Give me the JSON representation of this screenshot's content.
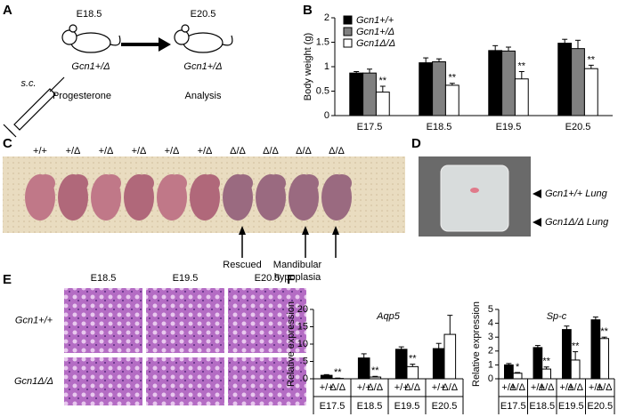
{
  "panels": {
    "labels": [
      "A",
      "B",
      "C",
      "D",
      "E",
      "F"
    ]
  },
  "schematic": {
    "stage_start": "E18.5",
    "stage_end": "E20.5",
    "genotype": "Gcn1+/Δ",
    "injection": "s.c.",
    "treatment": "Progesterone",
    "outcome": "Analysis"
  },
  "embryos": {
    "genotypes": [
      "+/+",
      "+/Δ",
      "+/Δ",
      "+/Δ",
      "+/Δ",
      "+/Δ",
      "Δ/Δ",
      "Δ/Δ",
      "Δ/Δ",
      "Δ/Δ"
    ],
    "annotations": [
      "Rescued",
      "Mandibular hypoplasia"
    ]
  },
  "lungs": {
    "labels": [
      "Gcn1+/+ Lung",
      "Gcn1Δ/Δ Lung"
    ]
  },
  "histology": {
    "columns": [
      "E18.5",
      "E19.5",
      "E20.5"
    ],
    "rows": [
      "Gcn1+/+",
      "Gcn1Δ/Δ"
    ]
  },
  "chart_data": [
    {
      "type": "bar",
      "ylabel": "Body weight (g)",
      "categories": [
        "E17.5",
        "E18.5",
        "E19.5",
        "E20.5"
      ],
      "series": [
        {
          "name": "Gcn1+/+",
          "color": "#000000",
          "values": [
            0.87,
            1.08,
            1.33,
            1.48
          ],
          "errors": [
            0.03,
            0.1,
            0.1,
            0.08
          ]
        },
        {
          "name": "Gcn1+/Δ",
          "color": "#808080",
          "values": [
            0.87,
            1.1,
            1.32,
            1.37
          ],
          "errors": [
            0.08,
            0.06,
            0.08,
            0.17
          ]
        },
        {
          "name": "Gcn1Δ/Δ",
          "color": "#ffffff",
          "values": [
            0.48,
            0.62,
            0.75,
            0.96
          ],
          "errors": [
            0.12,
            0.04,
            0.15,
            0.07
          ],
          "significance": [
            "**",
            "**",
            "**",
            "**"
          ]
        }
      ],
      "ylim": [
        0,
        2
      ],
      "yticks": [
        0,
        0.5,
        1,
        1.5,
        2
      ],
      "legend": "upper left"
    },
    {
      "type": "bar",
      "title": "Aqp5",
      "ylabel": "Relative expression",
      "categories": [
        "E17.5",
        "E18.5",
        "E19.5",
        "E20.5"
      ],
      "series": [
        {
          "name": "+/+",
          "color": "#000000",
          "values": [
            1.0,
            6.0,
            8.5,
            8.7
          ],
          "errors": [
            0.2,
            1.2,
            0.7,
            1.5
          ]
        },
        {
          "name": "Δ/Δ",
          "color": "#ffffff",
          "values": [
            0.1,
            0.5,
            3.5,
            12.8
          ],
          "errors": [
            0.1,
            0.2,
            0.7,
            5.5
          ],
          "significance": [
            "**",
            "**",
            "**",
            null
          ]
        }
      ],
      "ylim": [
        0,
        20
      ],
      "yticks": [
        0,
        5,
        10,
        15,
        20
      ]
    },
    {
      "type": "bar",
      "title": "Sp-c",
      "ylabel": "Relative expression",
      "categories": [
        "E17.5",
        "E18.5",
        "E19.5",
        "E20.5"
      ],
      "series": [
        {
          "name": "+/+",
          "color": "#000000",
          "values": [
            1.0,
            2.25,
            3.55,
            4.25
          ],
          "errors": [
            0.1,
            0.15,
            0.25,
            0.2
          ]
        },
        {
          "name": "Δ/Δ",
          "color": "#ffffff",
          "values": [
            0.4,
            0.7,
            1.35,
            2.9
          ],
          "errors": [
            0.05,
            0.15,
            0.6,
            0.1
          ],
          "significance": [
            "*",
            "**",
            "**",
            "**"
          ]
        }
      ],
      "ylim": [
        0,
        5
      ],
      "yticks": [
        0,
        1,
        2,
        3,
        4,
        5
      ]
    }
  ]
}
